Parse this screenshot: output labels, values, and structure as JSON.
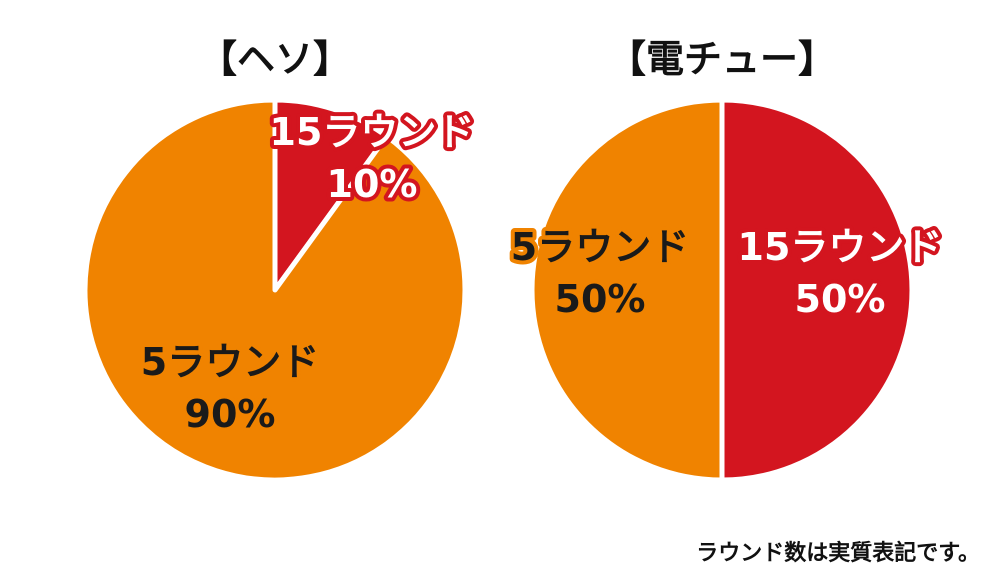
{
  "chart_data": [
    {
      "type": "pie",
      "title": "【ヘソ】",
      "slices": [
        {
          "label": "15ラウンド",
          "value": 10,
          "value_label": "10%",
          "color": "#d3151f"
        },
        {
          "label": "5ラウンド",
          "value": 90,
          "value_label": "90%",
          "color": "#f08300"
        }
      ]
    },
    {
      "type": "pie",
      "title": "【電チュー】",
      "slices": [
        {
          "label": "15ラウンド",
          "value": 50,
          "value_label": "50%",
          "color": "#d3151f"
        },
        {
          "label": "5ラウンド",
          "value": 50,
          "value_label": "50%",
          "color": "#f08300"
        }
      ]
    }
  ],
  "footnote": "ラウンド数は実質表記です。",
  "colors": {
    "label_red_text": "#ffffff",
    "label_red_outline": "#d3151f",
    "label_orange_text": "#1a1a1a",
    "label_orange_outline": "#f08300",
    "slice_border": "#ffffff"
  }
}
